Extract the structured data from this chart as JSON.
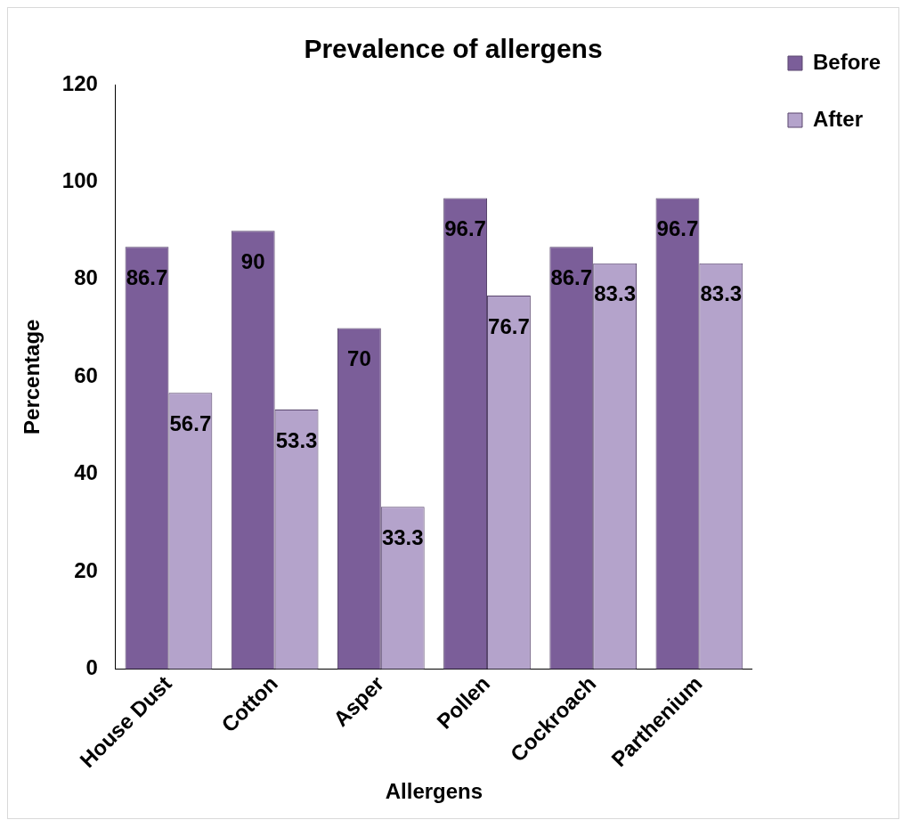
{
  "chart_data": {
    "type": "bar",
    "title": "Prevalence of allergens",
    "xlabel": "Allergens",
    "ylabel": "Percentage",
    "categories": [
      "House Dust",
      "Cotton",
      "Asper",
      "Pollen",
      "Cockroach",
      "Parthenium"
    ],
    "series": [
      {
        "name": "Before",
        "color": "#7b5e99",
        "values": [
          86.7,
          90,
          70,
          96.7,
          86.7,
          96.7
        ]
      },
      {
        "name": "After",
        "color": "#b4a3cb",
        "values": [
          56.7,
          53.3,
          33.3,
          76.7,
          83.3,
          83.3
        ]
      }
    ],
    "ylim": [
      0,
      120
    ],
    "yticks": [
      0,
      20,
      40,
      60,
      80,
      100,
      120
    ],
    "grid": false,
    "legend": "top right",
    "data_labels": true
  }
}
